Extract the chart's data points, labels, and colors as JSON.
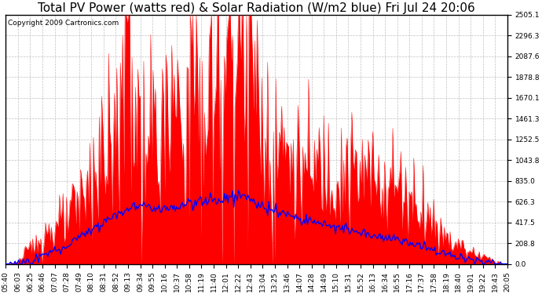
{
  "title": "Total PV Power (watts red) & Solar Radiation (W/m2 blue) Fri Jul 24 20:06",
  "copyright_text": "Copyright 2009 Cartronics.com",
  "ymin": 0.0,
  "ymax": 2505.1,
  "yticks": [
    0.0,
    208.8,
    417.5,
    626.3,
    835.0,
    1043.8,
    1252.5,
    1461.3,
    1670.1,
    1878.8,
    2087.6,
    2296.3,
    2505.1
  ],
  "xtick_labels": [
    "05:40",
    "06:03",
    "06:25",
    "06:46",
    "07:07",
    "07:28",
    "07:49",
    "08:10",
    "08:31",
    "08:52",
    "09:13",
    "09:34",
    "09:55",
    "10:16",
    "10:37",
    "10:58",
    "11:19",
    "11:40",
    "12:01",
    "12:22",
    "12:43",
    "13:04",
    "13:25",
    "13:46",
    "14:07",
    "14:28",
    "14:49",
    "15:10",
    "15:31",
    "15:52",
    "16:13",
    "16:34",
    "16:55",
    "17:16",
    "17:37",
    "17:58",
    "18:19",
    "18:40",
    "19:01",
    "19:22",
    "19:43",
    "20:05"
  ],
  "background_color": "#ffffff",
  "plot_bg_color": "#ffffff",
  "red_color": "#ff0000",
  "blue_color": "#0000ff",
  "grid_color": "#b0b0b0",
  "title_fontsize": 11,
  "tick_fontsize": 6.5,
  "copyright_fontsize": 6.5
}
